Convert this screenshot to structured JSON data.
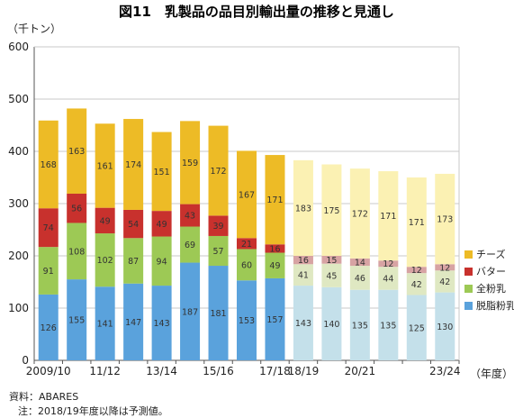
{
  "chart_data": {
    "type": "bar",
    "stacked": true,
    "title": "図11　乳製品の品目別輸出量の推移と見通し",
    "ylabel": "（千トン）",
    "xlabel": "（年度）",
    "ylim": [
      0,
      600
    ],
    "yticks": [
      0,
      100,
      200,
      300,
      400,
      500,
      600
    ],
    "categories": [
      "2009/10",
      "10/11",
      "11/12",
      "12/13",
      "13/14",
      "14/15",
      "15/16",
      "16/17",
      "17/18",
      "18/19",
      "19/20",
      "20/21",
      "21/22",
      "22/23",
      "23/24"
    ],
    "x_tick_labels": [
      "2009/10",
      "",
      "11/12",
      "",
      "13/14",
      "",
      "15/16",
      "",
      "17/18",
      "18/19",
      "",
      "20/21",
      "",
      "",
      "23/24"
    ],
    "forecast_from_index": 9,
    "series": [
      {
        "name": "脱脂粉乳",
        "color": "#5aa2dc",
        "forecast_color": "#c4e0ea",
        "values": [
          126,
          155,
          141,
          147,
          143,
          187,
          181,
          153,
          157,
          143,
          140,
          135,
          135,
          125,
          130
        ]
      },
      {
        "name": "全粉乳",
        "color": "#9dc955",
        "forecast_color": "#dfe8c2",
        "values": [
          91,
          108,
          102,
          87,
          94,
          69,
          57,
          60,
          49,
          41,
          45,
          46,
          44,
          42,
          42
        ]
      },
      {
        "name": "バター",
        "color": "#c8312d",
        "forecast_color": "#d7a3a3",
        "values": [
          74,
          56,
          49,
          54,
          49,
          43,
          39,
          21,
          16,
          16,
          15,
          14,
          12,
          12,
          12
        ]
      },
      {
        "name": "チーズ",
        "color": "#edbb26",
        "forecast_color": "#fbf1b3",
        "values": [
          168,
          163,
          161,
          174,
          151,
          159,
          172,
          167,
          171,
          183,
          175,
          172,
          171,
          171,
          173
        ]
      }
    ],
    "legend": {
      "placement": "right",
      "order": [
        "チーズ",
        "バター",
        "全粉乳",
        "脱脂粉乳"
      ]
    },
    "grid": true
  },
  "notes": {
    "source": "資料：ABARES",
    "note": "注：2018/19年度以降は予測値。"
  }
}
